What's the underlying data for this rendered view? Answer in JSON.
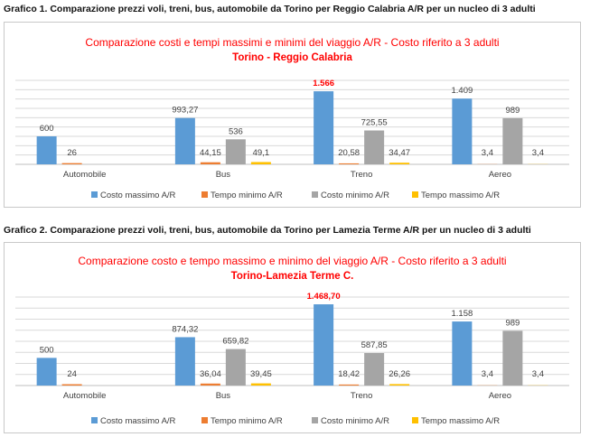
{
  "captions": {
    "chart1": "Grafico 1. Comparazione prezzi voli, treni, bus, automobile da Torino per Reggio Calabria A/R per un nucleo di 3 adulti",
    "chart2": "Grafico 2. Comparazione prezzi voli, treni, bus, automobile da Torino per Lamezia Terme A/R per un nucleo di 3 adulti"
  },
  "colors": {
    "costo_massimo": "#5b9bd5",
    "tempo_minimo": "#ed7d31",
    "costo_minimo": "#a5a5a5",
    "tempo_massimo": "#ffc000",
    "title": "#ff0000",
    "grid": "#d9d9d9",
    "label": "#404040"
  },
  "chart_data": [
    {
      "type": "bar",
      "title": "Comparazione costi e tempi massimi e minimi del viaggio A/R - Costo riferito a 3 adulti",
      "subtitle": "Torino - Reggio Calabria",
      "categories": [
        "Automobile",
        "Bus",
        "Treno",
        "Aereo"
      ],
      "series": [
        {
          "name": "Costo massimo A/R",
          "values": [
            600,
            993.27,
            1566,
            1409
          ],
          "labels": [
            "600",
            "993,27",
            "1.566",
            "1.409"
          ]
        },
        {
          "name": "Tempo minimo A/R",
          "values": [
            26,
            44.15,
            20.58,
            3.4
          ],
          "labels": [
            "26",
            "44,15",
            "20,58",
            "3,4"
          ]
        },
        {
          "name": "Costo minimo A/R",
          "values": [
            null,
            536,
            725.55,
            989
          ],
          "labels": [
            "",
            "536",
            "725,55",
            "989"
          ]
        },
        {
          "name": "Tempo massimo A/R",
          "values": [
            null,
            49.1,
            34.47,
            3.4
          ],
          "labels": [
            "",
            "49,1",
            "34,47",
            "3,4"
          ]
        }
      ],
      "highlight": {
        "category": 2,
        "series": 0
      },
      "ylim": [
        0,
        1800
      ],
      "grid": true,
      "legend": "bottom"
    },
    {
      "type": "bar",
      "title": "Comparazione costo e tempo massimo e minimo del viaggio A/R - Costo riferito a 3 adulti",
      "subtitle": "Torino-Lamezia Terme C.",
      "categories": [
        "Automobile",
        "Bus",
        "Treno",
        "Aereo"
      ],
      "series": [
        {
          "name": "Costo massimo A/R",
          "values": [
            500,
            874.32,
            1468.7,
            1158
          ],
          "labels": [
            "500",
            "874,32",
            "1.468,70",
            "1.158"
          ]
        },
        {
          "name": "Tempo minimo A/R",
          "values": [
            24,
            36.04,
            18.42,
            3.4
          ],
          "labels": [
            "24",
            "36,04",
            "18,42",
            "3,4"
          ]
        },
        {
          "name": "Costo minimo A/R",
          "values": [
            null,
            659.82,
            587.85,
            989
          ],
          "labels": [
            "",
            "659,82",
            "587,85",
            "989"
          ]
        },
        {
          "name": "Tempo massimo A/R",
          "values": [
            null,
            39.45,
            26.26,
            3.4
          ],
          "labels": [
            "",
            "39,45",
            "26,26",
            "3,4"
          ]
        }
      ],
      "highlight": {
        "category": 2,
        "series": 0
      },
      "ylim": [
        0,
        1600
      ],
      "grid": true,
      "legend": "bottom"
    }
  ]
}
